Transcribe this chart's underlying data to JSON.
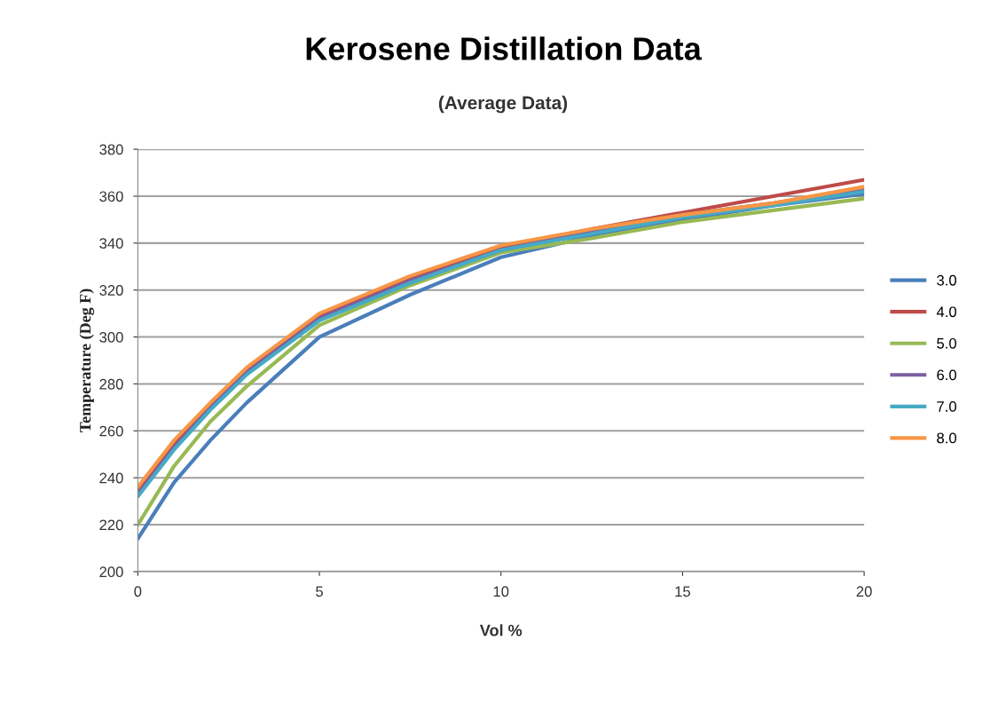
{
  "chart_data": {
    "type": "line",
    "title": "Kerosene Distillation Data",
    "subtitle": "(Average Data)",
    "xlabel": "Vol %",
    "ylabel": "Temperature (Deg F)",
    "x": [
      0,
      1,
      2,
      3,
      5,
      7.5,
      10,
      12.5,
      15,
      17.5,
      20
    ],
    "series": [
      {
        "name": "3.0",
        "color": "#4a7ebb",
        "values": [
          214,
          238,
          256,
          272,
          300,
          318,
          334,
          343,
          350,
          356,
          361
        ]
      },
      {
        "name": "4.0",
        "color": "#be4b48",
        "values": [
          235,
          255,
          271,
          286,
          309,
          325,
          338,
          346,
          353,
          360,
          367
        ]
      },
      {
        "name": "5.0",
        "color": "#98b954",
        "values": [
          220,
          245,
          264,
          279,
          305,
          322,
          336,
          342,
          349,
          354,
          359
        ]
      },
      {
        "name": "6.0",
        "color": "#7d60a0",
        "values": [
          233,
          253,
          270,
          285,
          308,
          324,
          337,
          345,
          352,
          357,
          363
        ]
      },
      {
        "name": "7.0",
        "color": "#46aac5",
        "values": [
          232,
          252,
          269,
          284,
          307,
          323,
          337,
          344,
          351,
          356,
          362
        ]
      },
      {
        "name": "8.0",
        "color": "#f79646",
        "values": [
          236,
          256,
          272,
          287,
          310,
          326,
          339,
          346,
          352,
          357,
          364
        ]
      }
    ],
    "xlim": [
      0,
      20
    ],
    "xticks": [
      0,
      5,
      10,
      15,
      20
    ],
    "ylim": [
      200,
      380
    ],
    "yticks": [
      200,
      220,
      240,
      260,
      280,
      300,
      320,
      340,
      360,
      380
    ],
    "grid": "y",
    "legend": "right",
    "marker": "none",
    "line_style": "solid"
  }
}
